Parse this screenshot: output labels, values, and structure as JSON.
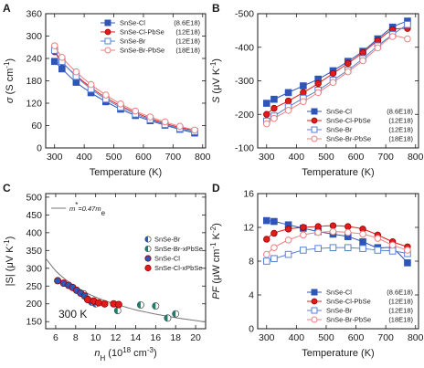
{
  "colors": {
    "blue": "#2f55b8",
    "red": "#e01b1b",
    "light_blue": "#5a82d2",
    "light_red": "#f08080",
    "teal": "#1f7c6a",
    "gray_line": "#777777"
  },
  "chart_data": [
    {
      "panel": "A",
      "type": "line",
      "xlabel_parts": [
        "Temperature (K)"
      ],
      "ylabel_parts": [
        "σ",
        " (S cm",
        "-1",
        ")"
      ],
      "xlim": [
        270,
        810
      ],
      "ylim": [
        0,
        360
      ],
      "xticks": [
        300,
        400,
        500,
        600,
        700,
        800
      ],
      "yticks": [
        0,
        60,
        120,
        180,
        240,
        300,
        360
      ],
      "legend_position": "top-right",
      "series": [
        {
          "name": "SnSe-Cl",
          "carrier": "(8.6E18)",
          "marker": "square",
          "fill": "solid",
          "color": "#2f55b8",
          "x": [
            300,
            325,
            373,
            423,
            473,
            523,
            573,
            623,
            673,
            723,
            773
          ],
          "y": [
            232,
            212,
            176,
            148,
            124,
            104,
            87,
            73,
            61,
            50,
            40
          ]
        },
        {
          "name": "SnSe-Cl-PbSe",
          "carrier": "(12E18)",
          "marker": "circle",
          "fill": "solid",
          "color": "#e01b1b",
          "x": [
            300,
            325,
            373,
            423,
            473,
            523,
            573,
            623,
            673,
            723,
            773
          ],
          "y": [
            258,
            230,
            194,
            162,
            135,
            113,
            95,
            79,
            66,
            55,
            47
          ]
        },
        {
          "name": "SnSe-Br",
          "carrier": "(12E18)",
          "marker": "square",
          "fill": "open",
          "color": "#5a82d2",
          "x": [
            300,
            325,
            373,
            423,
            473,
            523,
            573,
            623,
            673,
            723,
            773
          ],
          "y": [
            262,
            232,
            192,
            158,
            131,
            109,
            91,
            76,
            63,
            52,
            44
          ]
        },
        {
          "name": "SnSe-Br-PbSe",
          "carrier": "(18E18)",
          "marker": "circle",
          "fill": "open",
          "color": "#f08080",
          "x": [
            300,
            325,
            373,
            423,
            473,
            523,
            573,
            623,
            673,
            723,
            773
          ],
          "y": [
            274,
            243,
            204,
            170,
            142,
            118,
            99,
            83,
            70,
            58,
            48
          ]
        }
      ]
    },
    {
      "panel": "B",
      "type": "line",
      "xlabel_parts": [
        "Temperature (K)"
      ],
      "ylabel_parts": [
        "S",
        " (μV K",
        "-1",
        ")"
      ],
      "xlim": [
        270,
        810
      ],
      "ylim": [
        -100,
        -500
      ],
      "xticks": [
        300,
        400,
        500,
        600,
        700,
        800
      ],
      "yticks": [
        -100,
        -200,
        -300,
        -400,
        -500
      ],
      "legend_position": "bottom-right",
      "series": [
        {
          "name": "SnSe-Cl",
          "carrier": "(8.6E18)",
          "marker": "square",
          "fill": "solid",
          "color": "#2f55b8",
          "x": [
            300,
            325,
            373,
            423,
            473,
            523,
            573,
            623,
            673,
            723,
            773
          ],
          "y": [
            -233,
            -245,
            -265,
            -285,
            -305,
            -330,
            -358,
            -388,
            -425,
            -460,
            -478
          ]
        },
        {
          "name": "SnSe-Cl-PbSe",
          "carrier": "(12E18)",
          "marker": "circle",
          "fill": "solid",
          "color": "#e01b1b",
          "x": [
            300,
            325,
            373,
            423,
            473,
            523,
            573,
            623,
            673,
            723,
            773
          ],
          "y": [
            -200,
            -218,
            -240,
            -265,
            -292,
            -322,
            -352,
            -384,
            -420,
            -452,
            -456
          ]
        },
        {
          "name": "SnSe-Br",
          "carrier": "(12E18)",
          "marker": "square",
          "fill": "open",
          "color": "#5a82d2",
          "x": [
            300,
            325,
            373,
            423,
            473,
            523,
            573,
            623,
            673,
            723,
            773
          ],
          "y": [
            -180,
            -195,
            -222,
            -248,
            -272,
            -302,
            -332,
            -366,
            -404,
            -438,
            -468
          ]
        },
        {
          "name": "SnSe-Br-PbSe",
          "carrier": "(18E18)",
          "marker": "circle",
          "fill": "open",
          "color": "#f08080",
          "x": [
            300,
            325,
            373,
            423,
            473,
            523,
            573,
            623,
            673,
            723,
            773
          ],
          "y": [
            -172,
            -188,
            -212,
            -238,
            -265,
            -295,
            -327,
            -360,
            -398,
            -432,
            -425
          ]
        }
      ]
    },
    {
      "panel": "C",
      "type": "scatter",
      "xlabel_parts": [
        "n",
        "H",
        " (10",
        "18",
        " cm",
        "-3",
        ")"
      ],
      "ylabel_parts": [
        "|S| (μV K",
        "-1",
        ")"
      ],
      "xlim": [
        5,
        21
      ],
      "ylim": [
        130,
        510
      ],
      "xticks": [
        6,
        8,
        10,
        12,
        14,
        16,
        18,
        20
      ],
      "yticks": [
        150,
        200,
        250,
        300,
        350,
        400,
        450,
        500
      ],
      "annotation": "300 K",
      "curve_label_parts": [
        "m",
        "*",
        "=0.47m",
        "e"
      ],
      "pisarenko_curve": {
        "x": [
          5,
          6,
          7,
          8,
          9,
          10,
          11,
          12,
          13,
          14,
          15,
          16,
          17,
          18,
          19,
          20,
          21
        ],
        "y": [
          328,
          293,
          268,
          248,
          232,
          219,
          208,
          199,
          191,
          183,
          177,
          171,
          166,
          161,
          157,
          153,
          149
        ]
      },
      "series": [
        {
          "name": "SnSe-Br",
          "marker": "half-circle",
          "color": "#2f55b8",
          "x": [
            8.8,
            9.2,
            9.6,
            10.0
          ],
          "y": [
            228,
            213,
            205,
            200
          ]
        },
        {
          "name": "SnSe-Br-xPbSe",
          "marker": "half-circle",
          "color": "#1f7c6a",
          "x": [
            12.2,
            14.5,
            16.0,
            17.2,
            18.0
          ],
          "y": [
            181,
            197,
            194,
            160,
            172
          ]
        },
        {
          "name": "SnSe-Cl",
          "marker": "circle",
          "color": "#2f55b8",
          "x": [
            6.2,
            6.8,
            7.3,
            7.7,
            8.1,
            8.5,
            8.9
          ],
          "y": [
            265,
            258,
            252,
            246,
            238,
            230,
            222
          ]
        },
        {
          "name": "SnSe-Cl-xPbSe",
          "marker": "circle",
          "color": "#e01b1b",
          "x": [
            9.2,
            9.8,
            10.3,
            10.9,
            11.8,
            12.3
          ],
          "y": [
            212,
            208,
            203,
            200,
            200,
            198
          ]
        }
      ]
    },
    {
      "panel": "D",
      "type": "line",
      "xlabel_parts": [
        "Temperature (K)"
      ],
      "ylabel_parts": [
        "PF",
        " (μW cm",
        "-1",
        " K",
        "-2",
        ")"
      ],
      "xlim": [
        270,
        810
      ],
      "ylim": [
        0,
        16
      ],
      "xticks": [
        300,
        400,
        500,
        600,
        700,
        800
      ],
      "yticks": [
        0,
        4,
        8,
        12,
        16
      ],
      "legend_position": "bottom-right",
      "series": [
        {
          "name": "SnSe-Cl",
          "carrier": "(8.6E18)",
          "marker": "square",
          "fill": "solid",
          "color": "#2f55b8",
          "x": [
            300,
            325,
            373,
            423,
            473,
            523,
            573,
            623,
            673,
            723,
            773
          ],
          "y": [
            12.8,
            12.7,
            12.3,
            11.9,
            11.5,
            11.2,
            10.9,
            10.3,
            9.6,
            9.5,
            7.8
          ]
        },
        {
          "name": "SnSe-Cl-PbSe",
          "carrier": "(12E18)",
          "marker": "circle",
          "fill": "solid",
          "color": "#e01b1b",
          "x": [
            300,
            325,
            373,
            423,
            473,
            523,
            573,
            623,
            673,
            723,
            773
          ],
          "y": [
            10.6,
            11.3,
            11.8,
            12.0,
            12.1,
            12.2,
            12.1,
            11.8,
            11.1,
            10.3,
            9.7
          ]
        },
        {
          "name": "SnSe-Br",
          "carrier": "(12E18)",
          "marker": "square",
          "fill": "open",
          "color": "#5a82d2",
          "x": [
            300,
            325,
            373,
            423,
            473,
            523,
            573,
            623,
            673,
            723,
            773
          ],
          "y": [
            8.0,
            8.3,
            8.8,
            9.3,
            9.5,
            9.6,
            9.6,
            9.5,
            9.3,
            9.2,
            8.9
          ]
        },
        {
          "name": "SnSe-Br-PbSe",
          "carrier": "(18E18)",
          "marker": "circle",
          "fill": "open",
          "color": "#f08080",
          "x": [
            300,
            325,
            373,
            423,
            473,
            523,
            573,
            623,
            673,
            723,
            773
          ],
          "y": [
            8.8,
            9.6,
            10.5,
            11.1,
            11.4,
            11.5,
            11.4,
            11.2,
            10.7,
            9.9,
            9.3
          ]
        }
      ]
    }
  ]
}
